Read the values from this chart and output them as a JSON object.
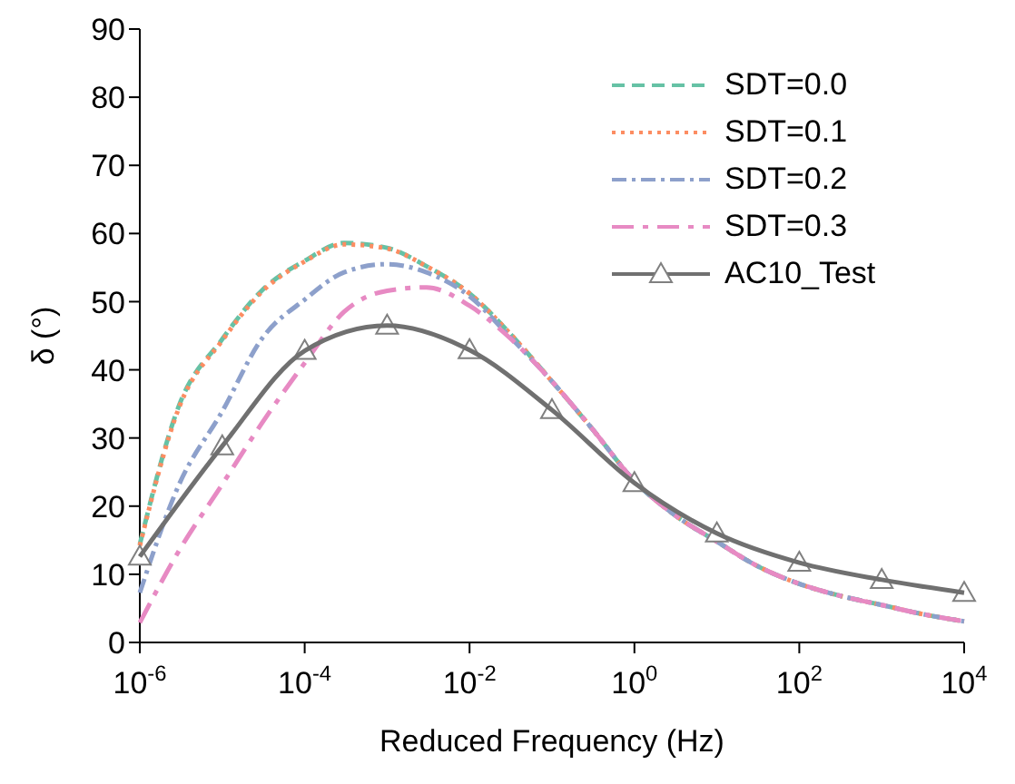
{
  "chart_data": {
    "type": "line",
    "xlabel": "Reduced Frequency (Hz)",
    "ylabel": "δ (°)",
    "log": "x",
    "xlim": [
      1e-06,
      10000
    ],
    "xticks": [
      {
        "value": 1e-06,
        "label": "10$^{-6}$"
      },
      {
        "value": 0.0001,
        "label": "10$^{-4}$"
      },
      {
        "value": 0.01,
        "label": "10$^{-2}$"
      },
      {
        "value": 1,
        "label": "10$^{0}$"
      },
      {
        "value": 100,
        "label": "10$^{2}$"
      },
      {
        "value": 10000,
        "label": "10$^{4}$"
      }
    ],
    "ylim": [
      0,
      90
    ],
    "yticks": [
      0,
      10,
      20,
      30,
      40,
      50,
      60,
      70,
      80,
      90
    ],
    "grid": false,
    "legend": "top right",
    "x": [
      1e-06,
      3e-06,
      1e-05,
      3e-05,
      0.0001,
      0.0003,
      0.001,
      0.003,
      0.01,
      0.03,
      0.1,
      0.3,
      1,
      3,
      10,
      30,
      100,
      300,
      1000,
      3000,
      10000
    ],
    "series": [
      {
        "name": "SDT=0.0",
        "color": "#66c2a5",
        "line_style": "dashed",
        "marker": "none",
        "values": [
          14.4,
          34.8,
          44.5,
          51.6,
          56,
          58.6,
          57.9,
          55.2,
          51.2,
          45.5,
          38.3,
          31.5,
          23.7,
          18.8,
          14.8,
          11.3,
          8.6,
          6.9,
          5.5,
          4.2,
          3.1
        ]
      },
      {
        "name": "SDT=0.1",
        "color": "#fc8d62",
        "line_style": "dotted",
        "marker": "none",
        "values": [
          14.2,
          34.5,
          44.3,
          51.4,
          55.9,
          58.4,
          57.8,
          55.2,
          51.2,
          45.5,
          38.3,
          31.5,
          23.7,
          18.8,
          14.8,
          11.3,
          8.6,
          6.9,
          5.5,
          4.2,
          3.1
        ]
      },
      {
        "name": "SDT=0.2",
        "color": "#8da0cb",
        "line_style": "dashdot",
        "marker": "none",
        "values": [
          7.3,
          23.2,
          33.9,
          44.5,
          50.3,
          54.3,
          55.5,
          54.3,
          50.8,
          45,
          38.3,
          31.5,
          23.7,
          18.8,
          14.8,
          11.3,
          8.6,
          6.9,
          5.5,
          4.2,
          3.1
        ]
      },
      {
        "name": "SDT=0.3",
        "color": "#e78ac3",
        "line_style": "longdashdot",
        "marker": "none",
        "values": [
          2.9,
          13.5,
          23.2,
          32.1,
          41,
          48.5,
          51.6,
          52.1,
          49.4,
          44.8,
          38.3,
          31.5,
          23.7,
          18.8,
          14.8,
          11.3,
          8.6,
          6.9,
          5.5,
          4.2,
          3.1
        ]
      },
      {
        "name": "AC10_Test",
        "color": "#707070",
        "line_style": "solid",
        "marker": "triangle",
        "x": [
          1e-06,
          1e-05,
          0.0001,
          0.001,
          0.01,
          0.1,
          1,
          10,
          100,
          1000,
          10000
        ],
        "values": [
          12.6,
          28.8,
          42.8,
          46.5,
          42.9,
          34.1,
          23.4,
          16,
          11.7,
          9.2,
          7.3
        ]
      }
    ]
  }
}
